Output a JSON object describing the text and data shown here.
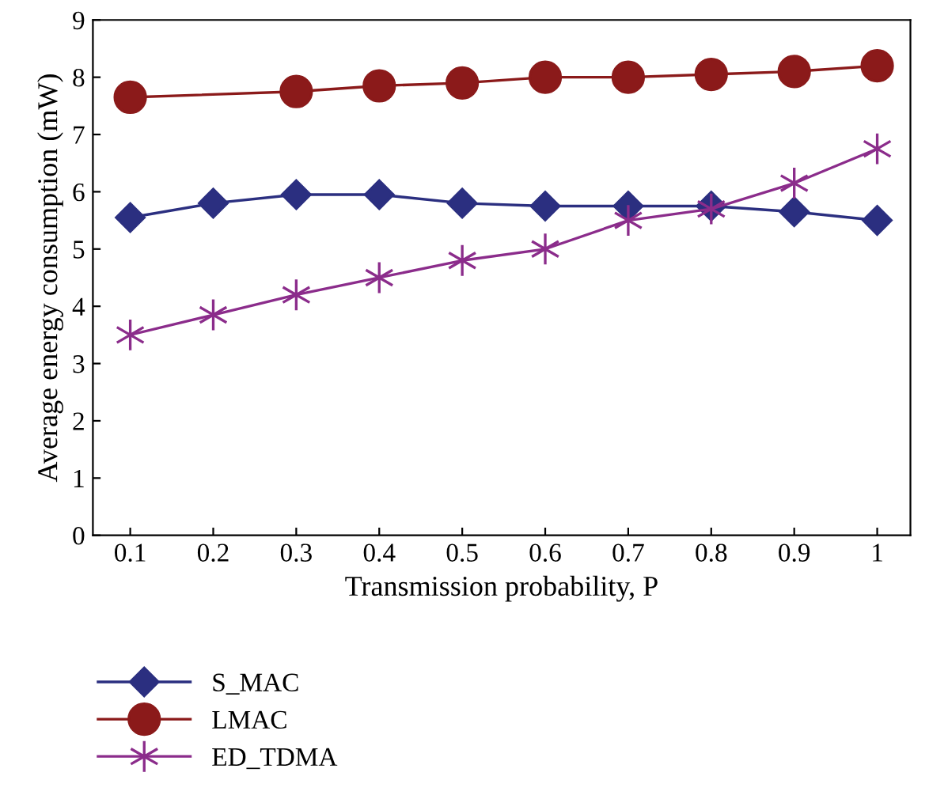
{
  "chart_data": {
    "type": "line",
    "xlabel": "Transmission probability, P",
    "ylabel": "Average energy consumption (mW)",
    "categories": [
      "0.1",
      "0.2",
      "0.3",
      "0.4",
      "0.5",
      "0.6",
      "0.7",
      "0.8",
      "0.9",
      "1"
    ],
    "ylim": [
      0,
      9
    ],
    "yticks": [
      0,
      1,
      2,
      3,
      4,
      5,
      6,
      7,
      8,
      9
    ],
    "grid": false,
    "legend": "bottom left",
    "series": [
      {
        "name": "S_MAC",
        "color": "#2b2f80",
        "marker": "diamond",
        "values": [
          5.55,
          5.8,
          5.95,
          5.95,
          5.8,
          5.75,
          5.75,
          5.75,
          5.65,
          5.5
        ]
      },
      {
        "name": "LMAC",
        "color": "#8b1a1a",
        "marker": "circle",
        "values": [
          7.65,
          null,
          7.75,
          7.85,
          7.9,
          8.0,
          8.0,
          8.05,
          8.1,
          8.2
        ]
      },
      {
        "name": "ED_TDMA",
        "color": "#8b2c8b",
        "marker": "cross",
        "values": [
          3.5,
          3.85,
          4.2,
          4.5,
          4.8,
          5.0,
          5.5,
          5.7,
          6.15,
          6.75
        ]
      }
    ]
  }
}
